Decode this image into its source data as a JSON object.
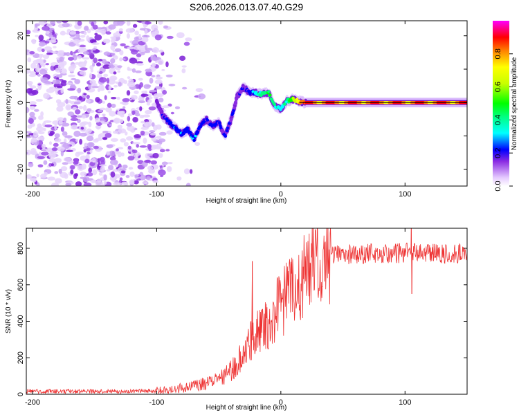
{
  "title": "S206.2026.013.07.40.G29",
  "chart_data": [
    {
      "type": "heatmap",
      "xlabel": "Height of straight line (km)",
      "ylabel": "Frequency (Hz)",
      "xlim": [
        -205,
        150
      ],
      "ylim": [
        -25,
        24.5
      ],
      "x_ticks": [
        -200,
        -100,
        0,
        100
      ],
      "y_ticks": [
        -20,
        -10,
        0,
        10,
        20
      ],
      "signal_track": {
        "x": [
          -100,
          -95,
          -90,
          -85,
          -80,
          -75,
          -70,
          -65,
          -60,
          -55,
          -50,
          -45,
          -40,
          -35,
          -30,
          -25,
          -20,
          -15,
          -10,
          -5,
          0,
          5,
          10,
          15,
          20,
          40,
          60,
          80,
          100,
          120,
          150
        ],
        "freq": [
          0,
          -4,
          -6,
          -7.5,
          -9.5,
          -8,
          -11,
          -7,
          -5,
          -7,
          -6,
          -10,
          -5,
          2,
          4.5,
          3,
          3,
          2.5,
          3,
          -1,
          -2,
          0.5,
          1,
          0.3,
          0,
          0,
          0,
          0,
          0,
          0,
          0
        ],
        "amplitude": [
          0.05,
          0.22,
          0.25,
          0.3,
          0.3,
          0.28,
          0.3,
          0.25,
          0.25,
          0.27,
          0.24,
          0.22,
          0.22,
          0.2,
          0.2,
          0.25,
          0.35,
          0.45,
          0.5,
          0.45,
          0.35,
          0.45,
          0.6,
          0.8,
          0.9,
          0.95,
          0.92,
          0.95,
          0.92,
          0.95,
          0.93
        ]
      },
      "noise_region": [
        -205,
        -95
      ],
      "colorbar": {
        "label": "Normalized spectral amplitude",
        "range": [
          0,
          1
        ],
        "ticks": [
          "0.0",
          "0.2",
          "0.4",
          "0.6",
          "0.8"
        ]
      }
    },
    {
      "type": "line",
      "xlabel": "Height of straight line (km)",
      "ylabel": "SNR (10 * v/v)",
      "xlim": [
        -205,
        150
      ],
      "ylim": [
        0,
        910
      ],
      "x_ticks": [
        -200,
        -100,
        0,
        100
      ],
      "y_ticks": [
        0,
        200,
        400,
        600,
        800
      ],
      "series": [
        {
          "name": "SNR",
          "color": "#ee3333",
          "x": [
            -205,
            -180,
            -150,
            -120,
            -100,
            -90,
            -80,
            -70,
            -60,
            -50,
            -45,
            -40,
            -35,
            -30,
            -25,
            -20,
            -15,
            -10,
            -5,
            0,
            5,
            10,
            15,
            20,
            25,
            30,
            35,
            40,
            50,
            60,
            80,
            100,
            120,
            150
          ],
          "values": [
            15,
            15,
            15,
            15,
            20,
            25,
            35,
            45,
            60,
            80,
            100,
            130,
            170,
            220,
            280,
            320,
            360,
            400,
            450,
            490,
            530,
            580,
            630,
            670,
            700,
            720,
            740,
            760,
            765,
            770,
            770,
            775,
            775,
            770
          ],
          "spikes": [
            {
              "x": -23,
              "value": 730
            },
            {
              "x": 105,
              "value": 910
            },
            {
              "x": 105.5,
              "value": 550
            }
          ]
        }
      ]
    }
  ]
}
